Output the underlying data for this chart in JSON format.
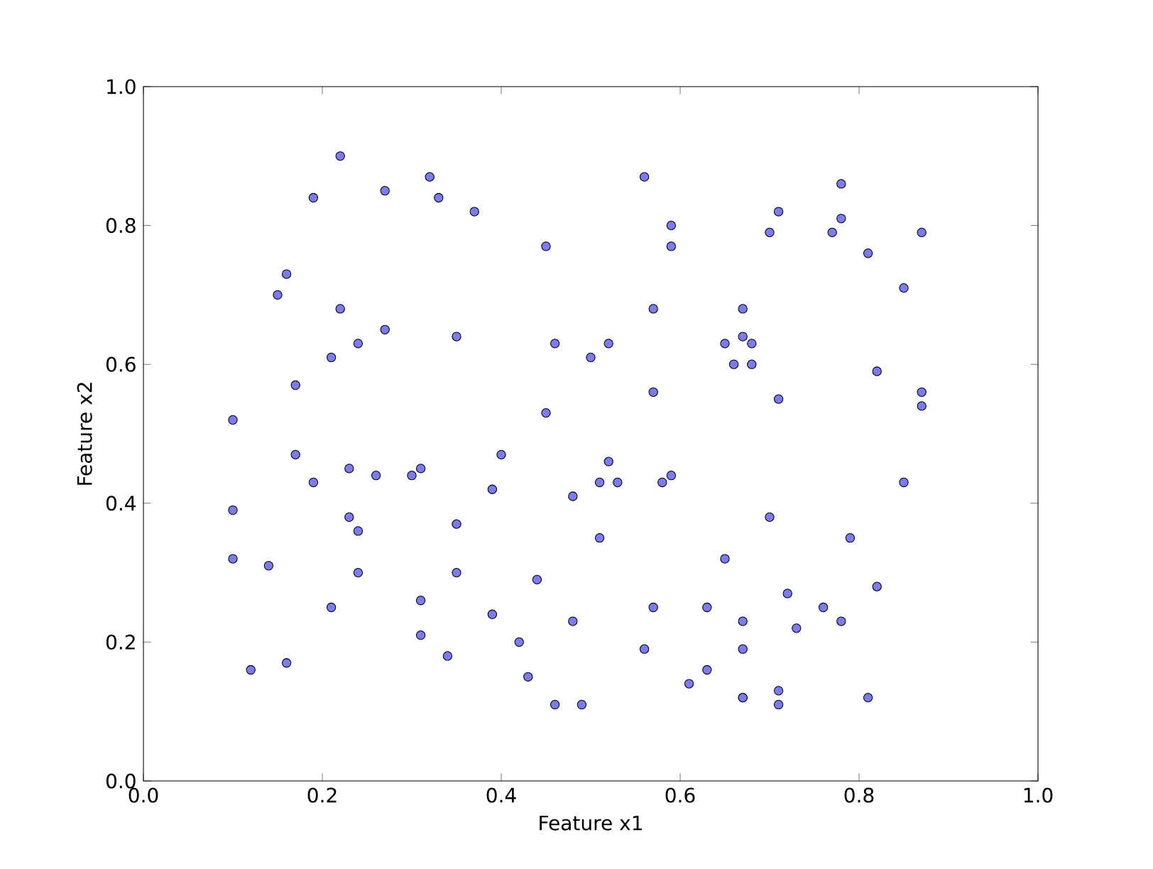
{
  "chart_data": {
    "type": "scatter",
    "xlabel": "Feature x1",
    "ylabel": "Feature x2",
    "xlim": [
      0,
      1
    ],
    "ylim": [
      0,
      1
    ],
    "xticks": [
      {
        "value": 0,
        "label": "0.0"
      },
      {
        "value": 0.2,
        "label": "0.2"
      },
      {
        "value": 0.4,
        "label": "0.4"
      },
      {
        "value": 0.6,
        "label": "0.6"
      },
      {
        "value": 0.8,
        "label": "0.8"
      },
      {
        "value": 1,
        "label": "1.0"
      }
    ],
    "yticks": [
      {
        "value": 0,
        "label": "0.0"
      },
      {
        "value": 0.2,
        "label": "0.2"
      },
      {
        "value": 0.4,
        "label": "0.4"
      },
      {
        "value": 0.6,
        "label": "0.6"
      },
      {
        "value": 0.8,
        "label": "0.8"
      },
      {
        "value": 1,
        "label": "1.0"
      }
    ],
    "marker": "circle",
    "series": [
      {
        "color": "#7b7bf2",
        "x": [
          0.22,
          0.19,
          0.27,
          0.32,
          0.33,
          0.37,
          0.16,
          0.15,
          0.22,
          0.27,
          0.24,
          0.21,
          0.35,
          0.17,
          0.1,
          0.17,
          0.4,
          0.23,
          0.31,
          0.26,
          0.3,
          0.19,
          0.39,
          0.1,
          0.23,
          0.24,
          0.35,
          0.1,
          0.14,
          0.24,
          0.35,
          0.31,
          0.21,
          0.39,
          0.44,
          0.31,
          0.34,
          0.42,
          0.12,
          0.16,
          0.43,
          0.48,
          0.46,
          0.49,
          0.45,
          0.56,
          0.59,
          0.59,
          0.46,
          0.5,
          0.52,
          0.57,
          0.45,
          0.57,
          0.52,
          0.51,
          0.53,
          0.58,
          0.59,
          0.48,
          0.51,
          0.57,
          0.56,
          0.63,
          0.63,
          0.61,
          0.65,
          0.71,
          0.7,
          0.78,
          0.78,
          0.77,
          0.81,
          0.87,
          0.85,
          0.67,
          0.67,
          0.65,
          0.68,
          0.66,
          0.68,
          0.82,
          0.71,
          0.87,
          0.87,
          0.85,
          0.7,
          0.79,
          0.72,
          0.82,
          0.76,
          0.67,
          0.78,
          0.73,
          0.67,
          0.67,
          0.67,
          0.71,
          0.71,
          0.81
        ],
        "values": [
          0.9,
          0.84,
          0.85,
          0.87,
          0.84,
          0.82,
          0.73,
          0.7,
          0.68,
          0.65,
          0.63,
          0.61,
          0.64,
          0.57,
          0.52,
          0.47,
          0.47,
          0.45,
          0.45,
          0.44,
          0.44,
          0.43,
          0.42,
          0.39,
          0.38,
          0.36,
          0.37,
          0.32,
          0.31,
          0.3,
          0.3,
          0.26,
          0.25,
          0.24,
          0.29,
          0.21,
          0.18,
          0.2,
          0.16,
          0.17,
          0.15,
          0.23,
          0.11,
          0.11,
          0.77,
          0.87,
          0.8,
          0.77,
          0.63,
          0.61,
          0.63,
          0.68,
          0.53,
          0.56,
          0.46,
          0.43,
          0.43,
          0.43,
          0.44,
          0.41,
          0.35,
          0.25,
          0.19,
          0.25,
          0.16,
          0.14,
          0.32,
          0.82,
          0.79,
          0.86,
          0.81,
          0.79,
          0.76,
          0.79,
          0.71,
          0.68,
          0.64,
          0.63,
          0.63,
          0.6,
          0.6,
          0.59,
          0.55,
          0.56,
          0.54,
          0.43,
          0.38,
          0.35,
          0.27,
          0.28,
          0.25,
          0.23,
          0.23,
          0.22,
          0.19,
          0.12,
          0.12,
          0.13,
          0.11,
          0.12
        ]
      }
    ]
  }
}
